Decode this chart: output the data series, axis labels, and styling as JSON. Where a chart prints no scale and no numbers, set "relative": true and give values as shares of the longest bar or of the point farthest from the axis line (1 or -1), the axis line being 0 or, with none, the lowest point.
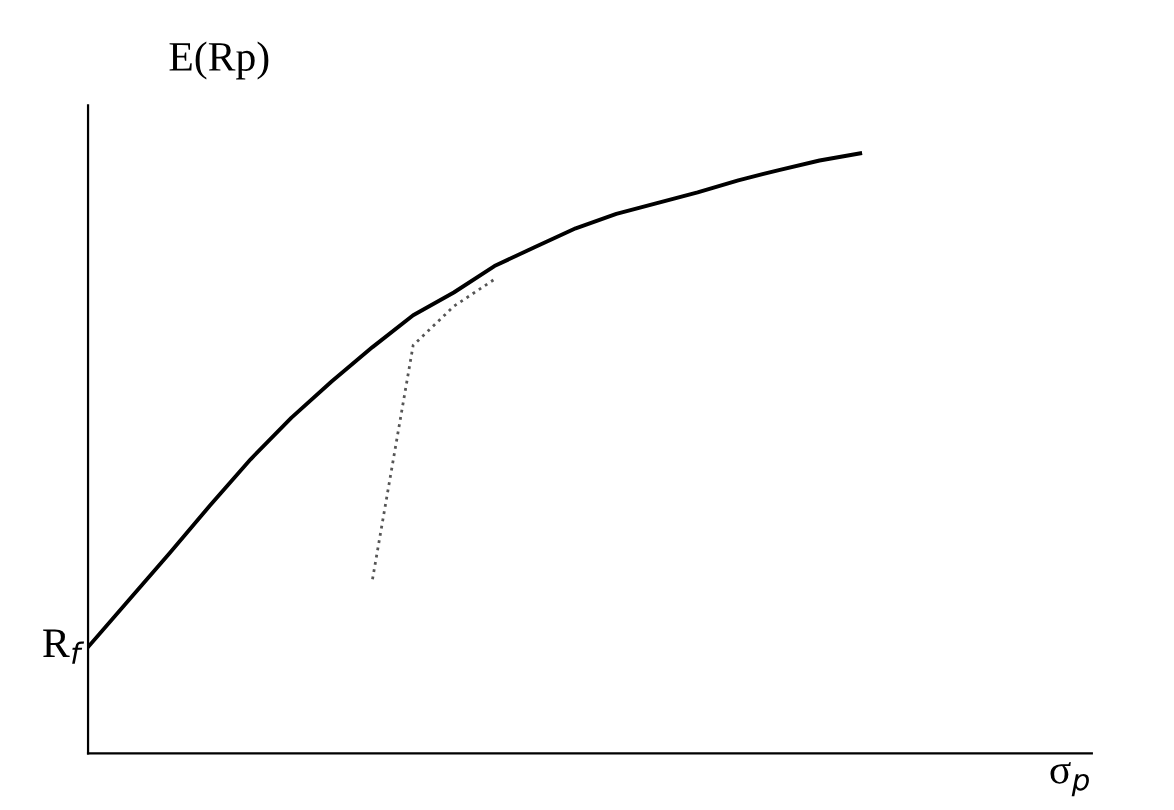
{
  "chart_data": {
    "type": "line",
    "relative": true,
    "xlabel": "σ$_{p}$",
    "ylabel": "E(Rp)",
    "categories": [
      null,
      null,
      null,
      null,
      null,
      null,
      null,
      null,
      null,
      null,
      null,
      null,
      null,
      null,
      null,
      null,
      null,
      null,
      null,
      null
    ],
    "annotations": [
      "R$_{f}$"
    ],
    "series": [
      {
        "color": "#000000",
        "line_style": "solid",
        "values": [
          0.177,
          0.255,
          0.333,
          0.413,
          0.49,
          0.559,
          0.62,
          0.677,
          0.73,
          0.768,
          0.812,
          0.844,
          0.875,
          0.899,
          0.917,
          0.935,
          0.955,
          0.972,
          0.988,
          1.0
        ]
      },
      {
        "color": "#555555",
        "line_style": "dotted",
        "values": [
          null,
          null,
          null,
          null,
          null,
          null,
          null,
          0.29,
          0.68,
          0.745,
          0.79,
          null,
          null,
          null,
          null,
          null,
          null,
          null,
          null,
          null
        ]
      }
    ]
  }
}
